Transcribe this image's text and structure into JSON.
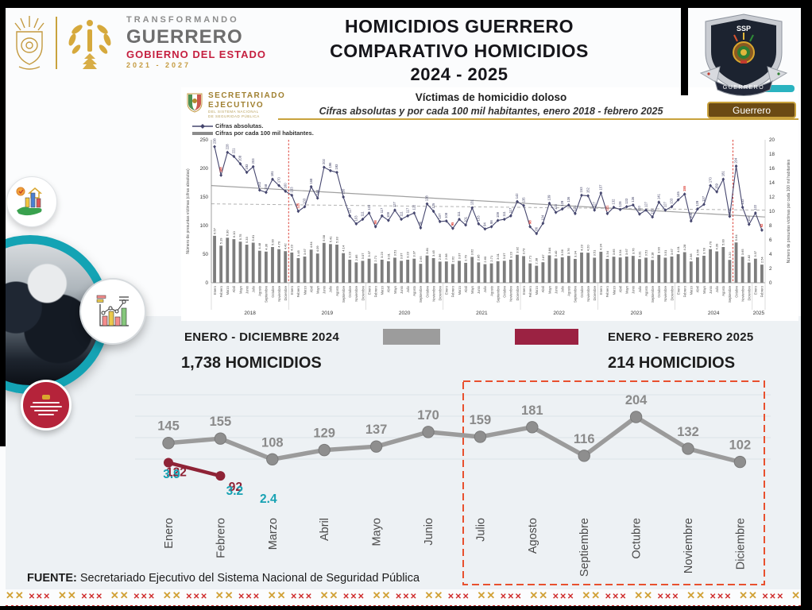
{
  "header": {
    "logo_text": {
      "transformando": "TRANSFORMANDO",
      "guerrero": "GUERRERO",
      "gobierno": "GOBIERNO DEL ESTADO",
      "period": "2021 - 2027"
    },
    "title_lines": [
      "HOMICIDIOS GUERRERO",
      "COMPARATIVO HOMICIDIOS",
      "2024 - 2025"
    ],
    "badge": {
      "acronym": "SSP",
      "state": "GUERRERO"
    }
  },
  "panel": {
    "org_line1": "SECRETARIADO",
    "org_line2": "EJECUTIVO",
    "org_small1": "DEL SISTEMA NACIONAL",
    "org_small2": "DE SEGURIDAD PÚBLICA",
    "chart_title": "Víctimas de homicidio doloso",
    "chart_subtitle": "Cifras absolutas y por cada 100 mil habitantes, enero 2018 - febrero 2025",
    "region_button": "Guerrero",
    "legend": [
      {
        "name": "Cifras absolutas."
      },
      {
        "name": "Cifras por cada 100 mil habitantes."
      }
    ],
    "left_axis_title": "Número de presuntas víctimas (cifras absolutas)",
    "right_axis_title": "Número de presuntas víctimas por cada 100 mil habitantes"
  },
  "summary": {
    "period_2024": "ENERO - DICIEMBRE  2024",
    "total_2024": "1,738 HOMICIDIOS",
    "period_2025": "ENERO - FEBRERO 2025",
    "total_2025": "214 HOMICIDIOS"
  },
  "footer": {
    "label": "FUENTE:",
    "text": " Secretariado Ejecutivo del Sistema Nacional de Seguridad Pública"
  },
  "icons": [
    "hand-with-bars-icon",
    "police-photo-circle",
    "mini-chart-icon",
    "coordination-seal"
  ],
  "colors": {
    "gold": "#c49a3f",
    "brand_red": "#c51f3f",
    "gray_series": "#9b9b9b",
    "maroon_series": "#8f2336",
    "teal": "#17a2b3",
    "navy_line": "#45466e",
    "bar_gray": "#7d7d7d",
    "highlight_red": "#d93025",
    "box_orange": "#e8502e",
    "button_bg": "#6b4a14",
    "panel_gold_line": "#c9a23d"
  },
  "chart_data": [
    {
      "id": "historico-mensual",
      "type": "line",
      "title": "Víctimas de homicidio doloso",
      "subtitle": "Cifras absolutas y por cada 100 mil habitantes, enero 2018 - febrero 2025",
      "x_years": [
        "2018",
        "2019",
        "2020",
        "2021",
        "2022",
        "2023",
        "2024",
        "2025"
      ],
      "months_full": [
        "Enero",
        "Febrero",
        "Marzo",
        "Abril",
        "Mayo",
        "Junio",
        "Julio",
        "Agosto",
        "Septiembre",
        "Octubre",
        "Noviembre",
        "Diciembre"
      ],
      "months_in_last_year": 2,
      "ylim_left": [
        0,
        250
      ],
      "yticks_left": [
        0,
        50,
        100,
        150,
        200,
        250
      ],
      "ylim_right": [
        0,
        20
      ],
      "yticks_right": [
        0,
        2,
        4,
        6,
        8,
        10,
        12,
        14,
        16,
        18,
        20
      ],
      "legend_position": "top-left",
      "series": [
        {
          "name": "Cifras absolutas",
          "type": "line",
          "axis": "left",
          "color": "#45466e",
          "values": [
            238,
            188,
            228,
            221,
            208,
            193,
            203,
            162,
            158,
            181,
            170,
            160,
            153,
            125,
            133,
            168,
            148,
            202,
            196,
            193,
            150,
            117,
            103,
            111,
            122,
            98,
            117,
            109,
            127,
            111,
            117,
            122,
            96,
            138,
            125,
            107,
            108,
            95,
            111,
            101,
            131,
            103,
            94,
            98,
            109,
            111,
            117,
            142,
            135,
            98,
            86,
            104,
            139,
            123,
            129,
            136,
            121,
            153,
            152,
            127,
            157,
            121,
            132,
            128,
            133,
            136,
            120,
            127,
            115,
            141,
            127,
            133,
            145,
            155,
            108,
            129,
            137,
            170,
            159,
            181,
            116,
            204,
            132,
            102,
            122,
            92
          ]
        },
        {
          "name": "Cifras por cada 100 mil habitantes",
          "type": "bar",
          "axis": "right",
          "color": "#7d7d7d",
          "values": [
            6.57,
            5.19,
            6.3,
            6.1,
            5.75,
            5.33,
            5.61,
            4.48,
            4.36,
            5.0,
            4.7,
            4.42,
            4.23,
            3.45,
            3.67,
            4.64,
            4.09,
            5.58,
            5.41,
            5.33,
            4.14,
            3.23,
            2.85,
            3.07,
            3.37,
            2.71,
            3.23,
            3.01,
            3.51,
            3.07,
            3.23,
            3.37,
            2.65,
            3.81,
            3.45,
            2.96,
            2.98,
            2.62,
            3.07,
            2.79,
            3.62,
            2.85,
            2.6,
            2.71,
            3.01,
            3.07,
            3.23,
            3.92,
            3.73,
            2.71,
            2.38,
            2.87,
            3.84,
            3.4,
            3.56,
            3.76,
            3.34,
            4.23,
            4.2,
            3.51,
            4.34,
            3.34,
            3.65,
            3.54,
            3.67,
            3.76,
            3.31,
            3.51,
            3.18,
            3.9,
            3.51,
            3.67,
            4.01,
            4.28,
            2.98,
            3.56,
            3.78,
            4.7,
            4.39,
            5.0,
            3.2,
            5.64,
            3.65,
            2.82,
            3.37,
            2.54
          ]
        }
      ],
      "trend_solid": [
        170,
        115
      ],
      "trend_dashed": [
        138,
        127
      ],
      "red_dashed_vlines_after_index": [
        11,
        80
      ],
      "red_label_indices": [
        1,
        13,
        25,
        37,
        49,
        61,
        73,
        85
      ]
    },
    {
      "id": "comparativo-2024-2025",
      "type": "line",
      "categories": [
        "Enero",
        "Febrero",
        "Marzo",
        "Abril",
        "Mayo",
        "Junio",
        "Julio",
        "Agosto",
        "Septiembre",
        "Octubre",
        "Noviembre",
        "Diciembre"
      ],
      "series": [
        {
          "name": "2024",
          "color": "#9b9b9b",
          "values": [
            145,
            155,
            108,
            129,
            137,
            170,
            159,
            181,
            116,
            204,
            132,
            102
          ]
        },
        {
          "name": "2025",
          "color": "#8f2336",
          "values": [
            122,
            92
          ]
        }
      ],
      "teal_labels": [
        {
          "category": "Enero",
          "value": "3.9"
        },
        {
          "category": "Febrero",
          "value": "3.2"
        },
        {
          "category": "Marzo",
          "value": "2.4"
        }
      ],
      "highlight_box": {
        "from": "Julio",
        "to": "Diciembre",
        "color": "#e8502e"
      },
      "grid": true,
      "legend_position": "none"
    }
  ]
}
